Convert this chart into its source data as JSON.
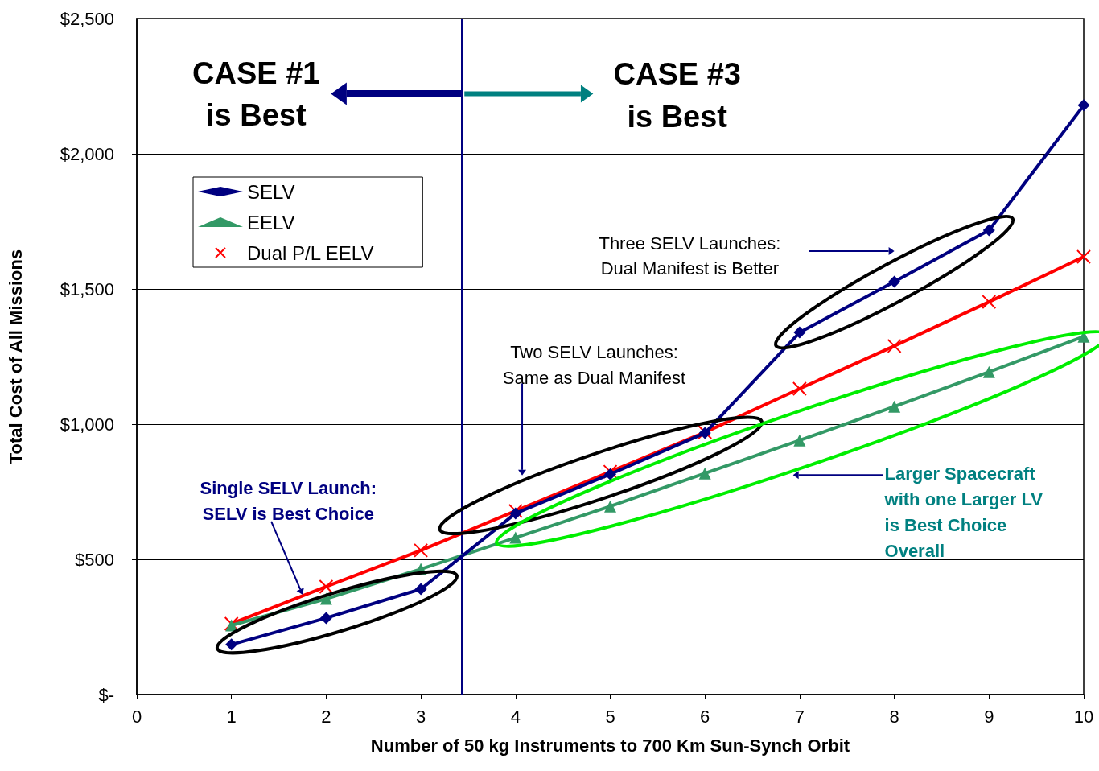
{
  "chart_data": {
    "type": "line",
    "xlabel": "Number of 50 kg Instruments to 700 Km Sun-Synch Orbit",
    "ylabel": "Total Cost of All Missions",
    "x": [
      1,
      2,
      3,
      4,
      5,
      6,
      7,
      8,
      9,
      10
    ],
    "series": [
      {
        "name": "SELV",
        "color": "#000080",
        "marker": "diamond",
        "values": [
          185,
          283,
          390,
          670,
          815,
          967,
          1339,
          1527,
          1717,
          2179
        ]
      },
      {
        "name": "EELV",
        "color": "#339966",
        "marker": "triangle",
        "values": [
          256,
          354,
          464,
          580,
          696,
          818,
          940,
          1065,
          1193,
          1324
        ]
      },
      {
        "name": "Dual P/L EELV",
        "color": "#ff0000",
        "marker": "cross",
        "values": [
          262,
          399,
          533,
          679,
          824,
          970,
          1131,
          1289,
          1452,
          1619
        ]
      }
    ],
    "xlim": [
      0,
      10
    ],
    "xticks": [
      0,
      1,
      2,
      3,
      4,
      5,
      6,
      7,
      8,
      9,
      10
    ],
    "ylim": [
      0,
      2500
    ],
    "yticks": [
      {
        "value": 0,
        "label": "$-"
      },
      {
        "value": 500,
        "label": "$500"
      },
      {
        "value": 1000,
        "label": "$1,000"
      },
      {
        "value": 1500,
        "label": "$1,500"
      },
      {
        "value": 2000,
        "label": "$2,000"
      },
      {
        "value": 2500,
        "label": "$2,500"
      }
    ],
    "grid": "y",
    "legend": "top left",
    "line_style": "solid",
    "ref_lines": [
      {
        "axis": "x",
        "value": 3.43,
        "color": "#000080"
      }
    ],
    "annotations": [
      "CASE #1\nis Best",
      {
        "text": "CASE #3\nis Best",
        "x": 3.43,
        "y": 2222
      },
      "Three SELV Launches:\nDual Manifest is Better",
      "Two SELV Launches:\nSame as Dual Manifest",
      "Single SELV Launch:\nSELV is Best Choice",
      "Larger Spacecraft\nwith one Larger LV\nis Best Choice\nOverall"
    ]
  }
}
